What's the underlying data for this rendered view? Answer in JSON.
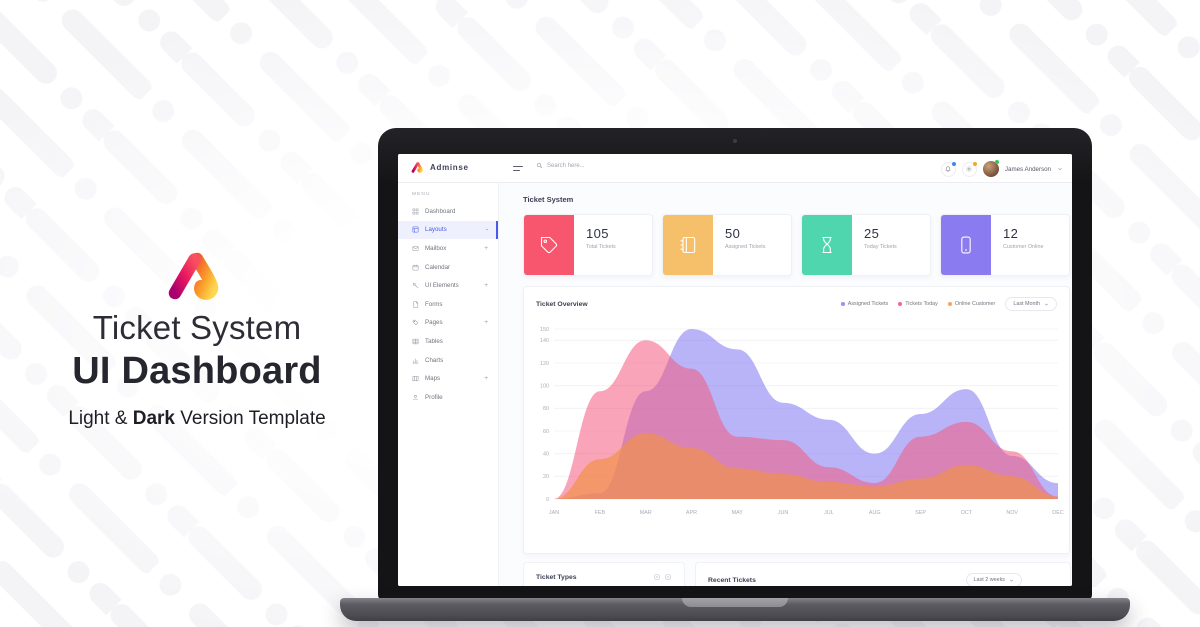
{
  "hero": {
    "title_line1": "Ticket System",
    "title_line2": "UI Dashboard",
    "subtitle": {
      "prefix": "Light & ",
      "bold": "Dark",
      "suffix": " Version Template"
    }
  },
  "app": {
    "navbar": {
      "brand": "Adminse",
      "search_placeholder": "Search here...",
      "user_name": "James Anderson",
      "icons": [
        "bell-icon",
        "gear-icon"
      ],
      "badge_colors": {
        "bell": "#4285f4",
        "gear": "#f5a623",
        "status": "#35c75a"
      }
    },
    "sidebar": {
      "menu_label": "MENU",
      "items": [
        {
          "label": "Dashboard",
          "icon": "dashboard-icon",
          "suffix": "",
          "active": false
        },
        {
          "label": "Layouts",
          "icon": "layouts-icon",
          "suffix": "-",
          "active": true
        },
        {
          "label": "Mailbox",
          "icon": "mailbox-icon",
          "suffix": "+",
          "active": false
        },
        {
          "label": "Calendar",
          "icon": "calendar-icon",
          "suffix": "",
          "active": false
        },
        {
          "label": "UI Elements",
          "icon": "ui-elements-icon",
          "suffix": "+",
          "active": false
        },
        {
          "label": "Forms",
          "icon": "forms-icon",
          "suffix": "",
          "active": false
        },
        {
          "label": "Pages",
          "icon": "pages-icon",
          "suffix": "+",
          "active": false
        },
        {
          "label": "Tables",
          "icon": "tables-icon",
          "suffix": "",
          "active": false
        },
        {
          "label": "Charts",
          "icon": "charts-icon",
          "suffix": "",
          "active": false
        },
        {
          "label": "Maps",
          "icon": "maps-icon",
          "suffix": "+",
          "active": false
        },
        {
          "label": "Profile",
          "icon": "profile-icon",
          "suffix": "",
          "active": false
        }
      ],
      "active_color": "#4a5ae8"
    },
    "page_title": "Ticket System",
    "stats": [
      {
        "value": "105",
        "label": "Total Tickets",
        "icon": "tag-icon",
        "color": "#f8566f"
      },
      {
        "value": "50",
        "label": "Assigned Tickets",
        "icon": "notebook-icon",
        "color": "#f6c06a"
      },
      {
        "value": "25",
        "label": "Today Tickets",
        "icon": "hourglass-icon",
        "color": "#4fd6ae"
      },
      {
        "value": "12",
        "label": "Customer Online",
        "icon": "phone-icon",
        "color": "#8b7bf1"
      }
    ],
    "overview": {
      "title": "Ticket Overview",
      "range_button": "Last Month",
      "legend": [
        {
          "label": "Assigned Tickets",
          "color": "#9a91f5"
        },
        {
          "label": "Tickets Today",
          "color": "#f5688b"
        },
        {
          "label": "Online Customer",
          "color": "#f5a360"
        }
      ]
    },
    "bottom": {
      "ticket_types_title": "Ticket Types",
      "recent_tickets_title": "Recent Tickets",
      "range_button": "Last 2 weeks"
    }
  },
  "chart_data": {
    "type": "area",
    "title": "Ticket Overview",
    "x": [
      "JAN",
      "FEB",
      "MAR",
      "APR",
      "MAY",
      "JUN",
      "JUL",
      "AUG",
      "SEP",
      "OCT",
      "NOV",
      "DEC"
    ],
    "ylim": [
      0,
      150
    ],
    "yticks": [
      0,
      20,
      40,
      60,
      80,
      100,
      120,
      140,
      150
    ],
    "grid": true,
    "legend_position": "top-right",
    "series": [
      {
        "name": "Assigned Tickets",
        "color": "#8e84f3",
        "values": [
          0,
          5,
          95,
          150,
          132,
          85,
          70,
          40,
          75,
          97,
          38,
          14
        ]
      },
      {
        "name": "Tickets Today",
        "color": "#f45a7f",
        "values": [
          0,
          95,
          140,
          115,
          55,
          52,
          28,
          14,
          55,
          68,
          42,
          2
        ]
      },
      {
        "name": "Online Customer",
        "color": "#f19145",
        "values": [
          0,
          35,
          58,
          45,
          27,
          22,
          15,
          11,
          18,
          30,
          20,
          2
        ]
      }
    ]
  }
}
